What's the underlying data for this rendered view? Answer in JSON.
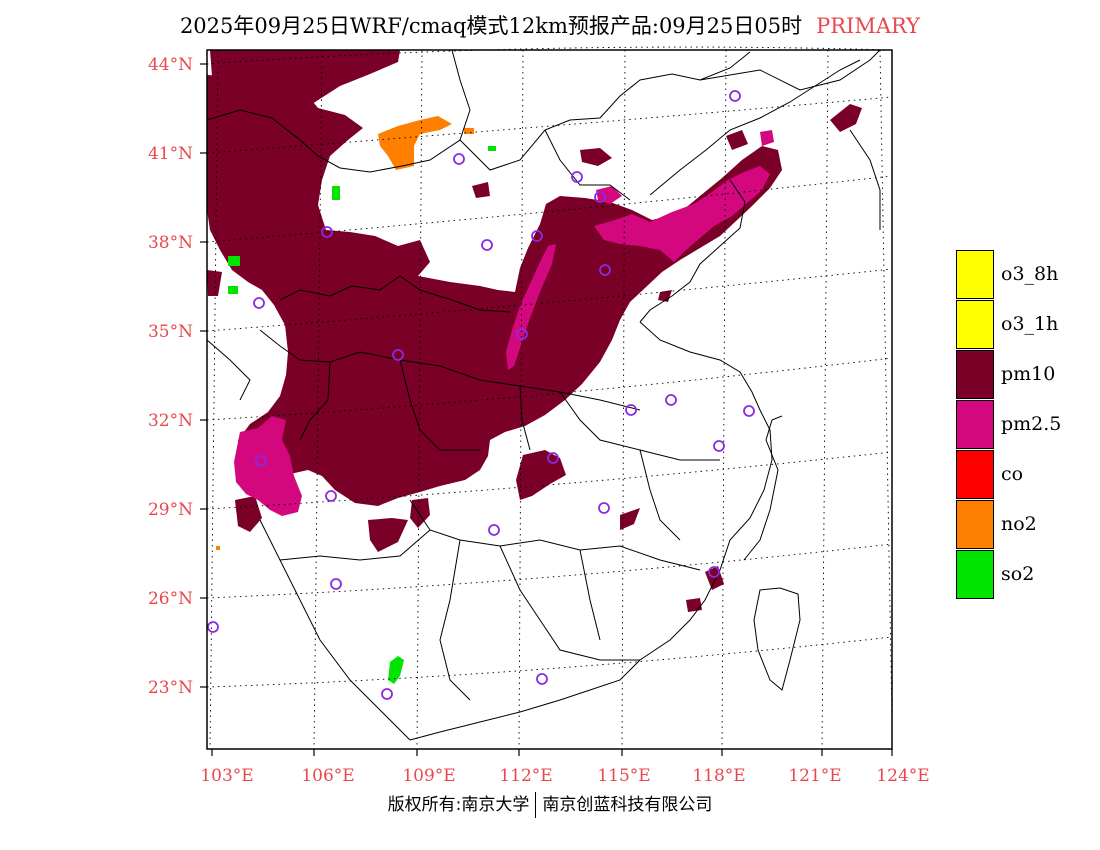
{
  "title": {
    "main": "2025年09月25日WRF/cmaq模式12km预报产品:09月25日05时",
    "tag": "PRIMARY"
  },
  "axes": {
    "lat_labels": [
      "44°N",
      "41°N",
      "38°N",
      "35°N",
      "32°N",
      "29°N",
      "26°N",
      "23°N"
    ],
    "lon_labels": [
      "103°E",
      "106°E",
      "109°E",
      "112°E",
      "115°E",
      "118°E",
      "121°E",
      "124°E"
    ]
  },
  "legend": [
    {
      "label": "o3_8h",
      "color": "#ffff00"
    },
    {
      "label": "o3_1h",
      "color": "#ffff00"
    },
    {
      "label": "pm10",
      "color": "#7a0027"
    },
    {
      "label": "pm2.5",
      "color": "#d4087e"
    },
    {
      "label": "co",
      "color": "#ff0000"
    },
    {
      "label": "no2",
      "color": "#ff7f00"
    },
    {
      "label": "so2",
      "color": "#00e400"
    }
  ],
  "footer": {
    "left": "版权所有:南京大学",
    "right": "南京创蓝科技有限公司"
  },
  "colors": {
    "pm10": "#7a0027",
    "pm25": "#d4087e",
    "no2": "#ff7f00",
    "so2": "#00e400",
    "station": "#8a2be2",
    "label": "#e8484d"
  }
}
